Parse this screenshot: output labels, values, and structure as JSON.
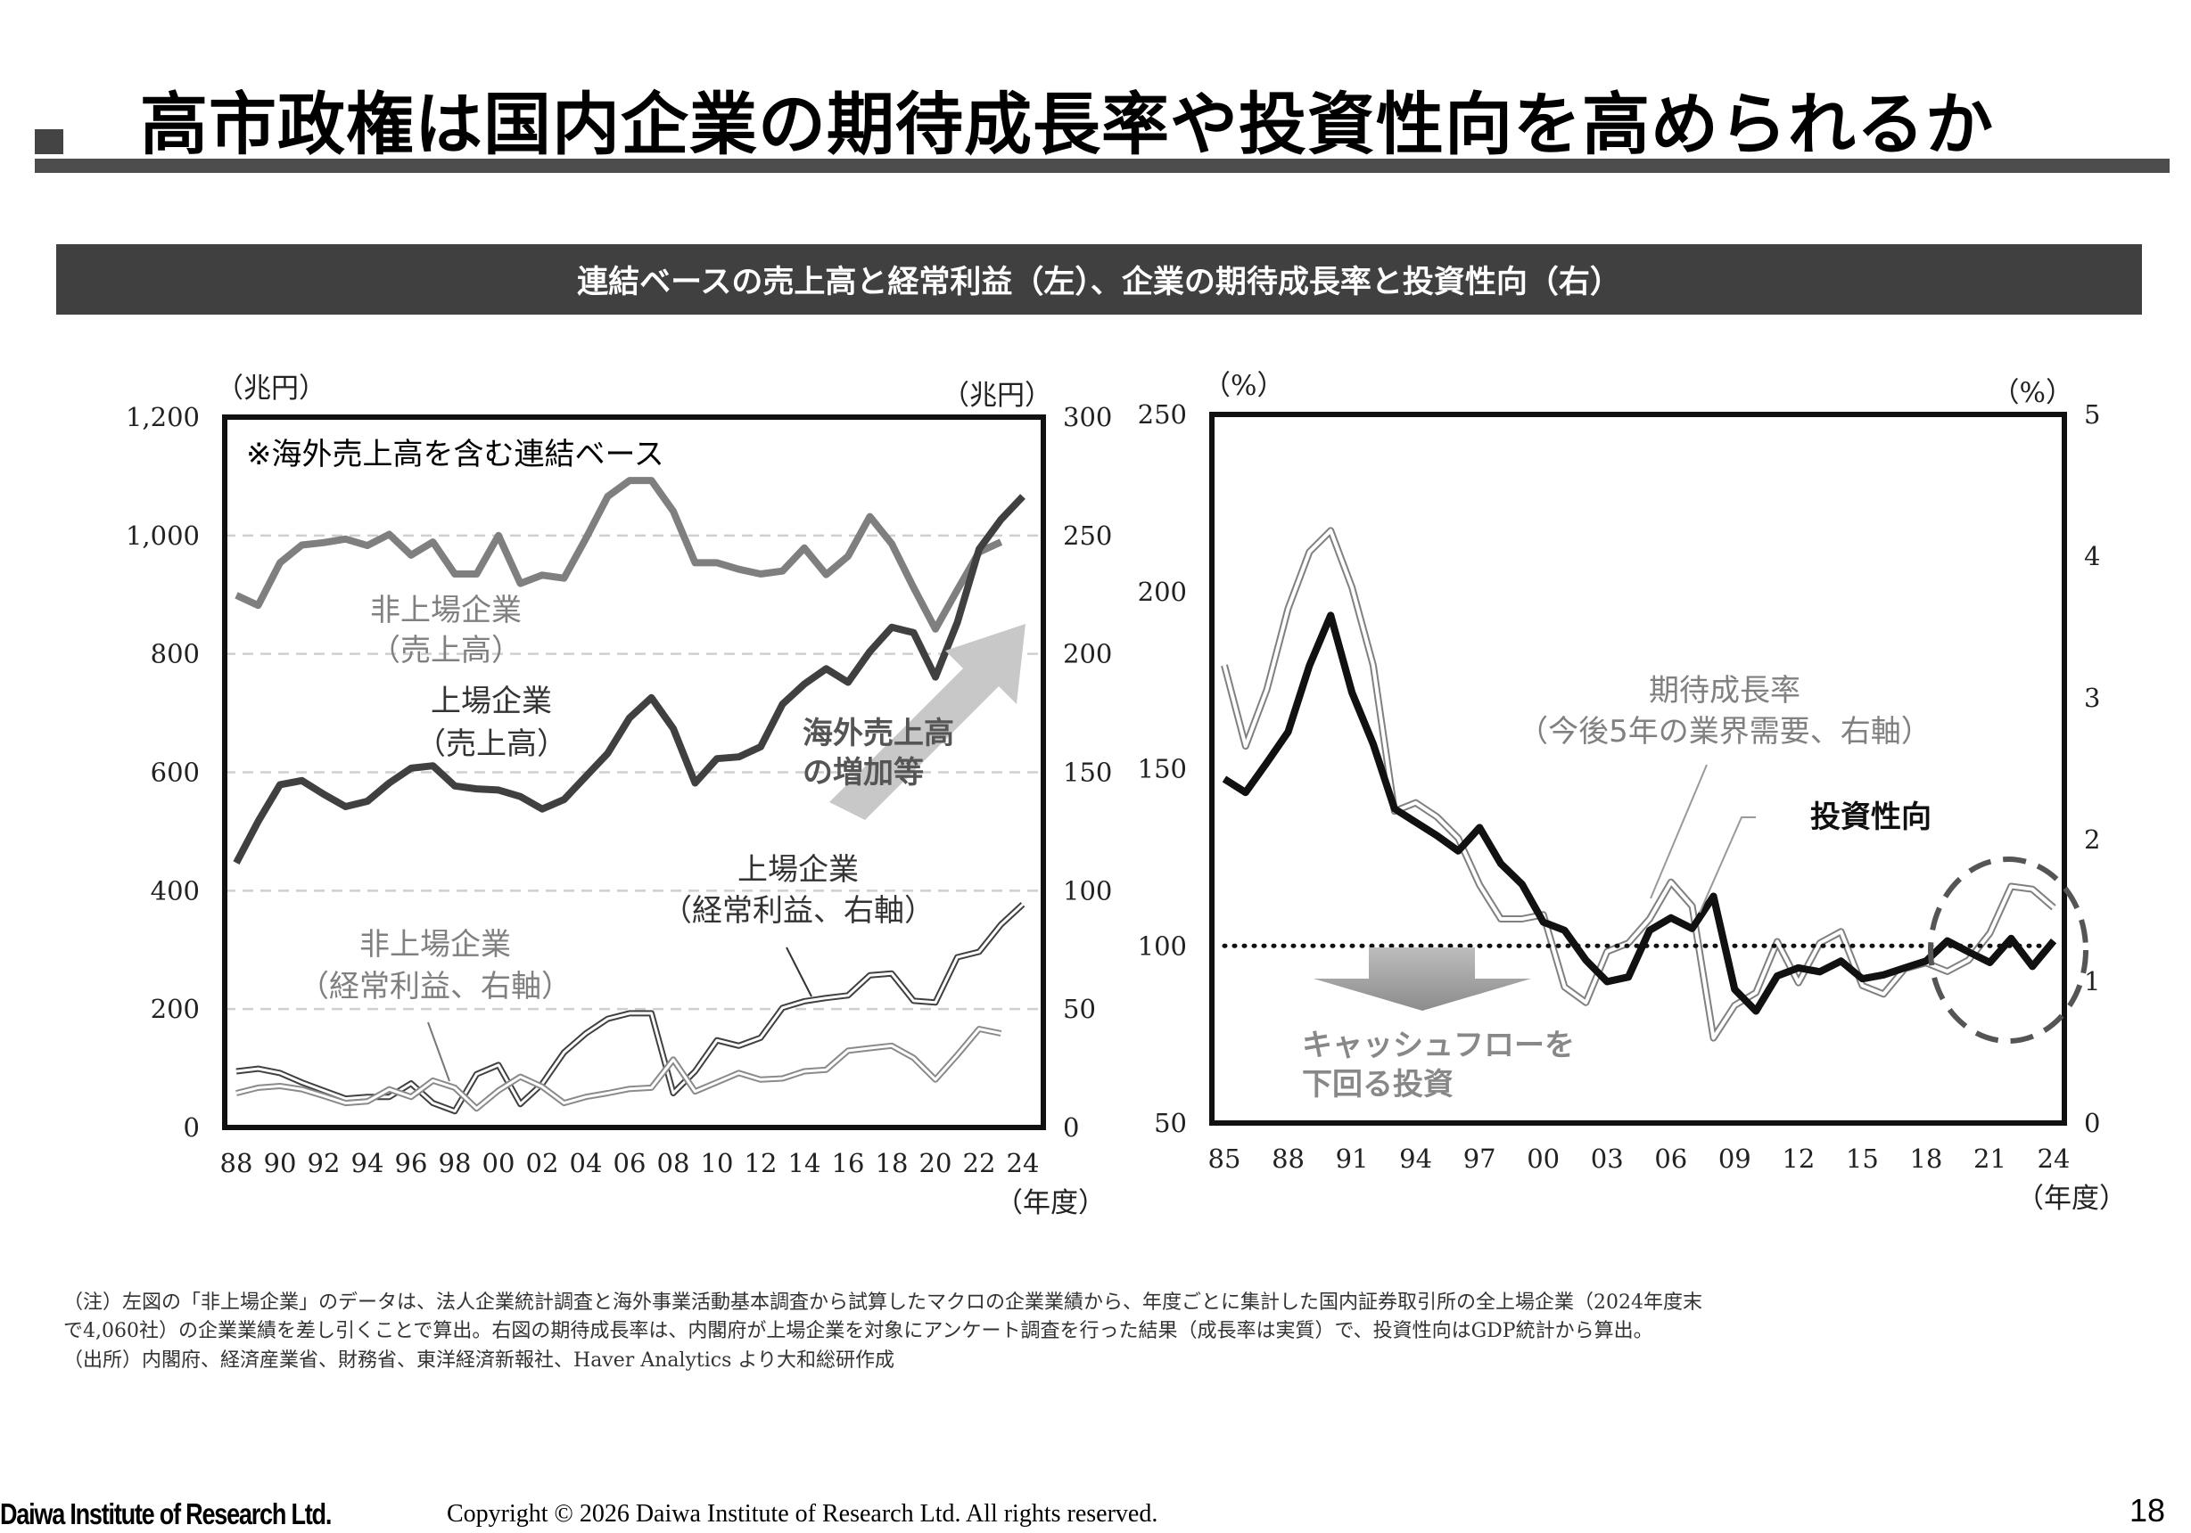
{
  "title": "高市政権は国内企業の期待成長率や投資性向を高められるか",
  "banner": "連結ベースの売上高と経常利益（左）、企業の期待成長率と投資性向（右）",
  "colors": {
    "banner": "#404040",
    "listed": "#404040",
    "unlisted": "#7f7f7f",
    "invest": "#111111",
    "growth": "#808080",
    "arrow": "#c8c8c8"
  },
  "chart_data": [
    {
      "type": "line",
      "left_unit": "（兆円）",
      "right_unit": "（兆円）",
      "x_unit": "（年度）",
      "note": "※海外売上高を含む連結ベース",
      "ylim_left": [
        0,
        1200
      ],
      "ylim_right": [
        0,
        300
      ],
      "yticks_left": [
        "0",
        "200",
        "400",
        "600",
        "800",
        "1,000",
        "1,200"
      ],
      "yticks_right": [
        "0",
        "50",
        "100",
        "150",
        "200",
        "250",
        "300"
      ],
      "xticks": [
        "88",
        "90",
        "92",
        "94",
        "96",
        "98",
        "00",
        "02",
        "04",
        "06",
        "08",
        "10",
        "12",
        "14",
        "16",
        "18",
        "20",
        "22",
        "24"
      ],
      "x": [
        1988,
        1989,
        1990,
        1991,
        1992,
        1993,
        1994,
        1995,
        1996,
        1997,
        1998,
        1999,
        2000,
        2001,
        2002,
        2003,
        2004,
        2005,
        2006,
        2007,
        2008,
        2009,
        2010,
        2011,
        2012,
        2013,
        2014,
        2015,
        2016,
        2017,
        2018,
        2019,
        2020,
        2021,
        2022,
        2023,
        2024
      ],
      "grid": "dashed horizontal",
      "series": [
        {
          "name": "非上場企業（売上高）",
          "axis": "left",
          "label": [
            "非上場企業",
            "（売上高）"
          ],
          "values": [
            899,
            882,
            954,
            984,
            988,
            994,
            983,
            1002,
            967,
            989,
            935,
            935,
            1000,
            919,
            933,
            928,
            995,
            1066,
            1093,
            1093,
            1041,
            954,
            954,
            943,
            935,
            940,
            979,
            934,
            965,
            1032,
            986,
            912,
            842,
            908,
            972,
            989,
            null
          ]
        },
        {
          "name": "上場企業（売上高）",
          "axis": "left",
          "label": [
            "上場企業",
            "（売上高）"
          ],
          "values": [
            447,
            517,
            579,
            586,
            563,
            542,
            551,
            582,
            607,
            611,
            577,
            572,
            570,
            559,
            538,
            554,
            593,
            632,
            692,
            726,
            674,
            582,
            623,
            626,
            643,
            715,
            749,
            775,
            752,
            804,
            845,
            836,
            761,
            853,
            977,
            1027,
            1066
          ]
        },
        {
          "name": "上場企業（経常利益、右軸）",
          "axis": "right",
          "label": [
            "上場企業",
            "（経常利益、右軸）"
          ],
          "values": [
            23.7,
            24.8,
            23,
            19,
            15.6,
            12.2,
            12.9,
            12.9,
            18.6,
            10.3,
            6.9,
            22.5,
            26.4,
            9.9,
            18.4,
            31.7,
            39.7,
            45.9,
            48.2,
            48.2,
            14.5,
            23.7,
            36.8,
            34.5,
            37.9,
            50.5,
            53.3,
            54.7,
            55.8,
            64.3,
            65,
            53.5,
            52.8,
            71.9,
            74.2,
            85.7,
            94.2
          ]
        },
        {
          "name": "非上場企業（経常利益、右軸）",
          "axis": "right",
          "label": [
            "非上場企業",
            "（経常利益、右軸）"
          ],
          "values": [
            14.5,
            16.8,
            17.5,
            16.1,
            13.3,
            10.3,
            11,
            16.1,
            12.9,
            19.8,
            16.8,
            8,
            15.6,
            21.4,
            17.2,
            10.3,
            12.9,
            14.5,
            16.3,
            16.8,
            28.7,
            15.2,
            19.1,
            23,
            20.2,
            20.7,
            23.7,
            24.4,
            32.4,
            33.5,
            34.5,
            29.4,
            20.2,
            30.6,
            41.6,
            39.7,
            null
          ]
        }
      ],
      "arrow_label": [
        "海外売上高",
        "の増加等"
      ]
    },
    {
      "type": "line",
      "left_unit": "（%）",
      "right_unit": "（%）",
      "x_unit": "（年度）",
      "ylim_left": [
        50,
        250
      ],
      "ylim_right": [
        0,
        5
      ],
      "yticks_left": [
        "50",
        "100",
        "150",
        "200",
        "250"
      ],
      "yticks_right": [
        "0",
        "1",
        "2",
        "3",
        "4",
        "5"
      ],
      "xticks": [
        "85",
        "88",
        "91",
        "94",
        "97",
        "00",
        "03",
        "06",
        "09",
        "12",
        "15",
        "18",
        "21",
        "24"
      ],
      "x": [
        1985,
        1986,
        1987,
        1988,
        1989,
        1990,
        1991,
        1992,
        1993,
        1994,
        1995,
        1996,
        1997,
        1998,
        1999,
        2000,
        2001,
        2002,
        2003,
        2004,
        2005,
        2006,
        2007,
        2008,
        2009,
        2010,
        2011,
        2012,
        2013,
        2014,
        2015,
        2016,
        2017,
        2018,
        2019,
        2020,
        2021,
        2022,
        2023,
        2024
      ],
      "reference_line": {
        "axis": "left",
        "value": 100,
        "style": "dotted"
      },
      "series": [
        {
          "name": "投資性向",
          "axis": "left",
          "label": [
            "投資性向"
          ],
          "values": [
            147.1,
            143.3,
            151.7,
            160.4,
            179.1,
            193.3,
            171.5,
            157,
            138.7,
            134.9,
            131.1,
            126.8,
            133.4,
            123.2,
            117.4,
            106.7,
            104.4,
            96,
            89.9,
            91.2,
            104.4,
            107.9,
            104.9,
            114,
            87.7,
            81.6,
            91.5,
            93.8,
            92.7,
            95.7,
            90.7,
            91.8,
            93.8,
            95.7,
            101.4,
            98.3,
            95.3,
            102.1,
            94.2,
            101.4
          ]
        },
        {
          "name": "期待成長率（今後5年の業界需要、右軸）",
          "axis": "right",
          "label": [
            "期待成長率",
            "（今後5年の業界需要、右軸）"
          ],
          "values": [
            3.23,
            2.66,
            3.06,
            3.63,
            4.03,
            4.18,
            3.78,
            3.23,
            2.2,
            2.26,
            2.16,
            2.01,
            1.68,
            1.44,
            1.44,
            1.47,
            0.96,
            0.85,
            1.21,
            1.27,
            1.44,
            1.7,
            1.53,
            0.6,
            0.83,
            0.92,
            1.28,
            0.99,
            1.27,
            1.35,
            0.97,
            0.91,
            1.09,
            1.13,
            1.07,
            1.15,
            1.34,
            1.67,
            1.65,
            1.52
          ]
        }
      ],
      "arrow_label": [
        "キャッシュフローを",
        "下回る投資"
      ]
    }
  ],
  "notes": [
    "（注）左図の「非上場企業」のデータは、法人企業統計調査と海外事業活動基本調査から試算したマクロの企業業績から、年度ごとに集計した国内証券取引所の全上場企業（2024年度末",
    "で4,060社）の企業業績を差し引くことで算出。右図の期待成長率は、内閣府が上場企業を対象にアンケート調査を行った結果（成長率は実質）で、投資性向はGDP統計から算出。",
    "（出所）内閣府、経済産業省、財務省、東洋経済新報社、Haver Analytics より大和総研作成"
  ],
  "footer": {
    "logo": "Daiwa Institute of Research Ltd.",
    "copyright": "Copyright © 2026 Daiwa Institute of Research Ltd. All rights reserved.",
    "page": "18"
  }
}
